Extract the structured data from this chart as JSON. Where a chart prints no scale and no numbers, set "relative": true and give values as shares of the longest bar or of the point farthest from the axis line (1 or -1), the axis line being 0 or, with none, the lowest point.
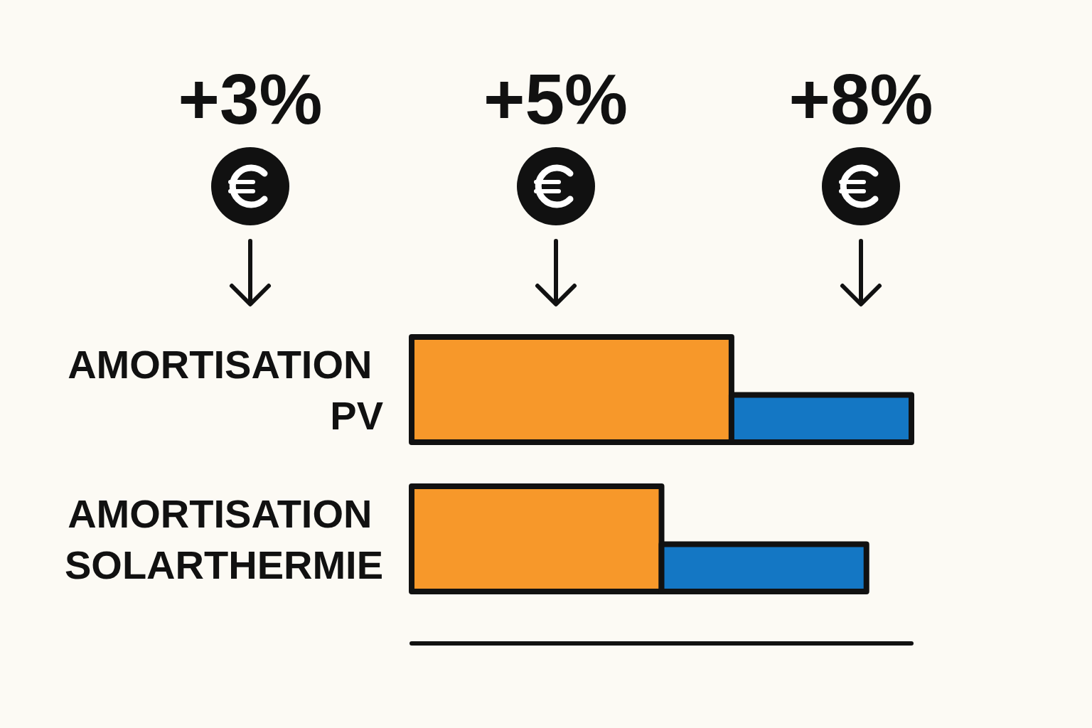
{
  "chart_data": {
    "type": "bar",
    "orientation": "horizontal",
    "stacked": true,
    "relative": true,
    "grid": false,
    "categories": [
      "AMORTISATION PV",
      "AMORTISATION SOLARTHERMIE"
    ],
    "series": [
      {
        "color": "#f7982a",
        "values": [
          0.64,
          0.5
        ]
      },
      {
        "color": "#1477c4",
        "values": [
          0.36,
          0.41
        ]
      }
    ],
    "annotations": [
      "+3%",
      "+5%",
      "+8%"
    ]
  }
}
